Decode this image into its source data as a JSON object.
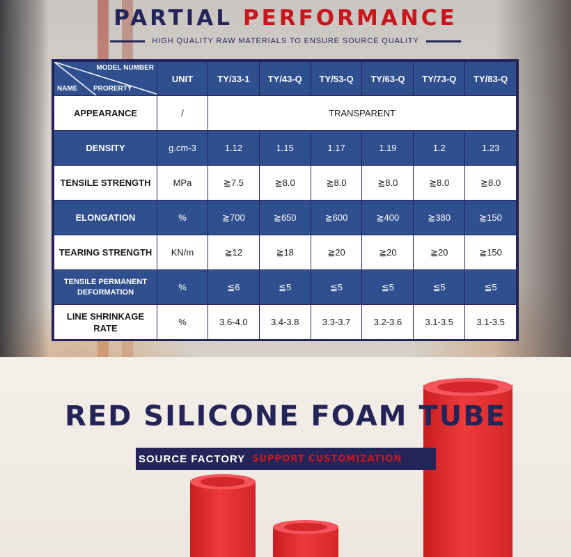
{
  "header": {
    "title_part1": "PARTIAL",
    "title_part2": "PERFORMANCE",
    "subtitle": "HIGH QUALITY RAW MATERIALS TO ENSURE SOURCE QUALITY"
  },
  "table": {
    "corner": {
      "model_number": "MODEL NUMBER",
      "name": "NAME",
      "property": "PRORERTY"
    },
    "unit_header": "UNIT",
    "models": [
      "TY/33-1",
      "TY/43-Q",
      "TY/53-Q",
      "TY/63-Q",
      "TY/73-Q",
      "TY/83-Q"
    ],
    "appearance": {
      "name": "APPEARANCE",
      "unit": "/",
      "value": "TRANSPARENT"
    },
    "rows": [
      {
        "name": "DENSITY",
        "unit": "g.cm-3",
        "values": [
          "1.12",
          "1.15",
          "1.17",
          "1.19",
          "1.2",
          "1.23"
        ]
      },
      {
        "name": "TENSILE STRENGTH",
        "unit": "MPa",
        "values": [
          "≧7.5",
          "≧8.0",
          "≧8.0",
          "≧8.0",
          "≧8.0",
          "≧8.0"
        ]
      },
      {
        "name": "ELONGATION",
        "unit": "%",
        "values": [
          "≧700",
          "≧650",
          "≧600",
          "≧400",
          "≧380",
          "≧150"
        ]
      },
      {
        "name": "TEARING STRENGTH",
        "unit": "KN/m",
        "values": [
          "≧12",
          "≧18",
          "≧20",
          "≧20",
          "≧20",
          "≧150"
        ]
      },
      {
        "name_line1": "TENSILE PERMANENT",
        "name_line2": "DEFORMATION",
        "unit": "%",
        "values": [
          "≦6",
          "≦5",
          "≦5",
          "≦5",
          "≦5",
          "≦5"
        ]
      },
      {
        "name_line1": "LINE SHRINKAGE",
        "name_line2": "RATE",
        "unit": "%",
        "values": [
          "3.6-4.0",
          "3.4-3.8",
          "3.3-3.7",
          "3.2-3.6",
          "3.1-3.5",
          "3.1-3.5"
        ]
      }
    ]
  },
  "product": {
    "title": "RED SILICONE FOAM TUBE",
    "tag_source": "SOURCE FACTORY",
    "tag_custom": "SUPPORT CUSTOMIZATION"
  },
  "colors": {
    "navy": "#252459",
    "red": "#c8161d",
    "table_blue": "#2f4f8f",
    "tube_red": "#e83434"
  }
}
